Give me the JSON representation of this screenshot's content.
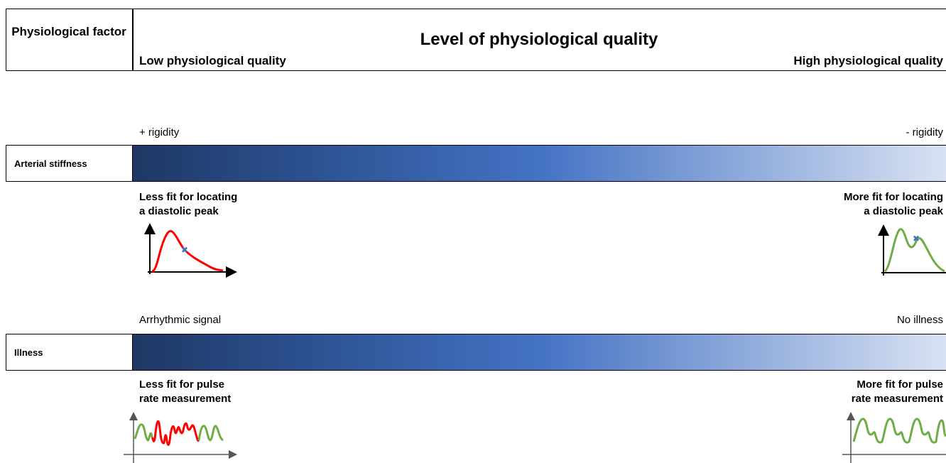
{
  "header": {
    "factor_heading": "Physiological factor",
    "title": "Level of physiological quality",
    "low_label": "Low physiological quality",
    "high_label": "High physiological quality"
  },
  "rows": [
    {
      "name": "Arterial stiffness",
      "left_text": "+ rigidity",
      "right_text": "- rigidity",
      "left_fit": [
        "Less fit for locating",
        "a diastolic peak"
      ],
      "right_fit": [
        "More fit for locating",
        "a diastolic peak"
      ]
    },
    {
      "name": "Illness",
      "left_text": "Arrhythmic signal",
      "right_text": "No illness",
      "left_fit": [
        "Less fit for pulse",
        "rate measurement"
      ],
      "right_fit": [
        "More fit for pulse",
        "rate measurement"
      ]
    }
  ],
  "colors": {
    "gradient_dark": "#1f3865",
    "gradient_mid": "#4472c4",
    "gradient_light": "#d9e2f3",
    "bad_signal": "#ff0000",
    "good_signal": "#70ad47",
    "marker": "#4472c4"
  }
}
